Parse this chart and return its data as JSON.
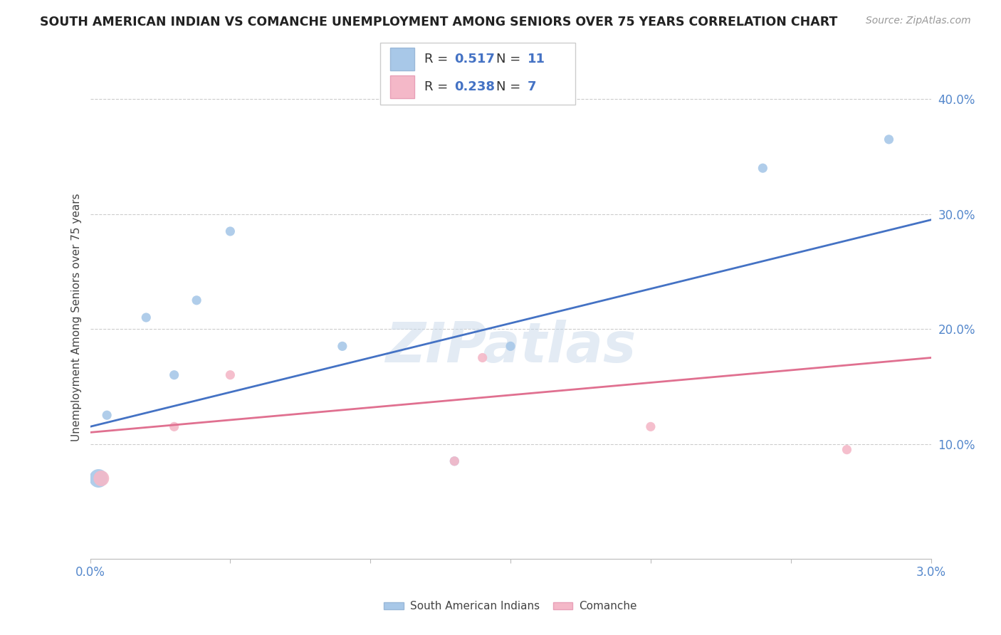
{
  "title": "SOUTH AMERICAN INDIAN VS COMANCHE UNEMPLOYMENT AMONG SENIORS OVER 75 YEARS CORRELATION CHART",
  "source": "Source: ZipAtlas.com",
  "ylabel": "Unemployment Among Seniors over 75 years",
  "xlim": [
    0.0,
    0.03
  ],
  "ylim": [
    0.0,
    0.42
  ],
  "xtick_positions": [
    0.0,
    0.005,
    0.01,
    0.015,
    0.02,
    0.025,
    0.03
  ],
  "xtick_labels": [
    "0.0%",
    "",
    "",
    "",
    "",
    "",
    "3.0%"
  ],
  "ytick_positions": [
    0.1,
    0.2,
    0.3,
    0.4
  ],
  "ytick_labels": [
    "10.0%",
    "20.0%",
    "30.0%",
    "40.0%"
  ],
  "blue_points_x": [
    0.0003,
    0.0006,
    0.002,
    0.003,
    0.0038,
    0.005,
    0.009,
    0.013,
    0.015,
    0.024,
    0.0285
  ],
  "blue_points_y": [
    0.07,
    0.125,
    0.21,
    0.16,
    0.225,
    0.285,
    0.185,
    0.085,
    0.185,
    0.34,
    0.365
  ],
  "blue_sizes": [
    350,
    90,
    90,
    90,
    90,
    90,
    90,
    90,
    90,
    90,
    90
  ],
  "pink_points_x": [
    0.0004,
    0.003,
    0.005,
    0.013,
    0.014,
    0.02,
    0.027
  ],
  "pink_points_y": [
    0.07,
    0.115,
    0.16,
    0.085,
    0.175,
    0.115,
    0.095
  ],
  "pink_sizes": [
    250,
    90,
    90,
    90,
    90,
    90,
    90
  ],
  "blue_line_x": [
    0.0,
    0.03
  ],
  "blue_line_y": [
    0.115,
    0.295
  ],
  "pink_line_x": [
    0.0,
    0.03
  ],
  "pink_line_y": [
    0.11,
    0.175
  ],
  "blue_scatter_color": "#a8c8e8",
  "pink_scatter_color": "#f4b8c8",
  "blue_line_color": "#4472c4",
  "pink_line_color": "#e07090",
  "legend_label_blue": "South American Indians",
  "legend_label_pink": "Comanche",
  "watermark": "ZIPatlas",
  "background_color": "#ffffff",
  "grid_color": "#cccccc",
  "title_color": "#222222",
  "source_color": "#999999",
  "tick_color": "#5588cc",
  "ylabel_color": "#444444"
}
